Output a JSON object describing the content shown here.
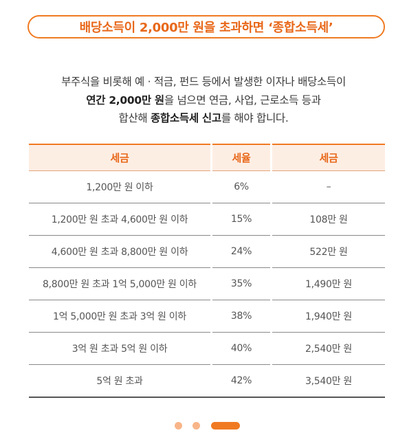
{
  "title": "배당소득이 2,000만 원을 초과하면 ‘종합소득세’",
  "intro": {
    "line1": "부주식을 비롯해 예 · 적금, 펀드 등에서 발생한 이자나 배당소득이",
    "line2_bold": "연간 2,000만 원",
    "line2_rest": "을 넘으면 연금, 사업, 근로소득 등과",
    "line3_pre": "합산해 ",
    "line3_bold": "종합소득세 신고",
    "line3_rest": "를 해야 합니다."
  },
  "table": {
    "headers": [
      "세금",
      "세율",
      "세금"
    ],
    "rows": [
      [
        "1,200만 원 이하",
        "6%",
        "–"
      ],
      [
        "1,200만 원 초과 4,600만 원 이하",
        "15%",
        "108만 원"
      ],
      [
        "4,600만 원 초과 8,800만 원 이하",
        "24%",
        "522만 원"
      ],
      [
        "8,800만 원 초과 1억 5,000만 원 이하",
        "35%",
        "1,490만 원"
      ],
      [
        "1억 5,000만 원 초과 3억 원 이하",
        "38%",
        "1,940만 원"
      ],
      [
        "3억 원 초과 5억 원 이하",
        "40%",
        "2,540만 원"
      ],
      [
        "5억 원 초과",
        "42%",
        "3,540만 원"
      ]
    ]
  },
  "pagination": {
    "total": 3,
    "active_index": 2
  },
  "colors": {
    "accent": "#f07a22",
    "header_bg": "#fdeee4",
    "dot_inactive": "#f8b589"
  }
}
